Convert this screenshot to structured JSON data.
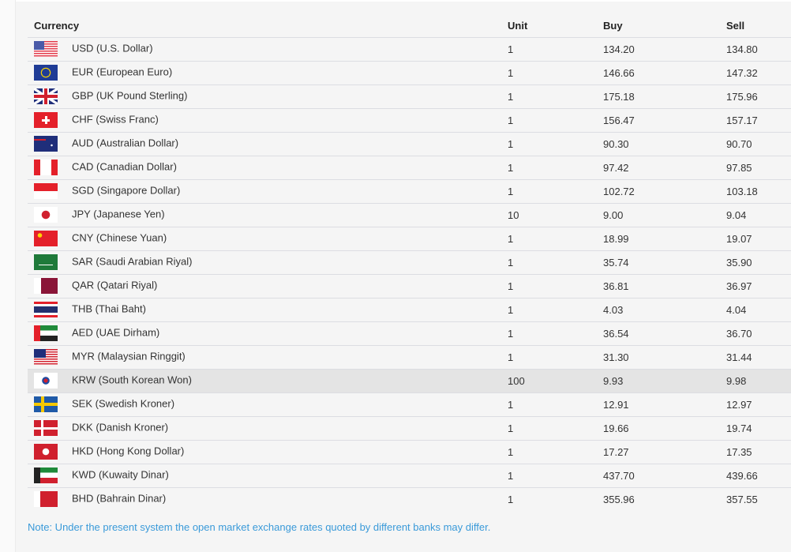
{
  "header": {
    "currency": "Currency",
    "unit": "Unit",
    "buy": "Buy",
    "sell": "Sell"
  },
  "rows": [
    {
      "flag": "us-flag-icon",
      "name": "USD (U.S. Dollar)",
      "unit": "1",
      "buy": "134.20",
      "sell": "134.80"
    },
    {
      "flag": "eu-flag-icon",
      "name": "EUR (European Euro)",
      "unit": "1",
      "buy": "146.66",
      "sell": "147.32"
    },
    {
      "flag": "uk-flag-icon",
      "name": "GBP (UK Pound Sterling)",
      "unit": "1",
      "buy": "175.18",
      "sell": "175.96"
    },
    {
      "flag": "ch-flag-icon",
      "name": "CHF (Swiss Franc)",
      "unit": "1",
      "buy": "156.47",
      "sell": "157.17"
    },
    {
      "flag": "au-flag-icon",
      "name": "AUD (Australian Dollar)",
      "unit": "1",
      "buy": "90.30",
      "sell": "90.70"
    },
    {
      "flag": "ca-flag-icon",
      "name": "CAD (Canadian Dollar)",
      "unit": "1",
      "buy": "97.42",
      "sell": "97.85"
    },
    {
      "flag": "sg-flag-icon",
      "name": "SGD (Singapore Dollar)",
      "unit": "1",
      "buy": "102.72",
      "sell": "103.18"
    },
    {
      "flag": "jp-flag-icon",
      "name": "JPY (Japanese Yen)",
      "unit": "10",
      "buy": "9.00",
      "sell": "9.04"
    },
    {
      "flag": "cn-flag-icon",
      "name": "CNY (Chinese Yuan)",
      "unit": "1",
      "buy": "18.99",
      "sell": "19.07"
    },
    {
      "flag": "sa-flag-icon",
      "name": "SAR (Saudi Arabian Riyal)",
      "unit": "1",
      "buy": "35.74",
      "sell": "35.90"
    },
    {
      "flag": "qa-flag-icon",
      "name": "QAR (Qatari Riyal)",
      "unit": "1",
      "buy": "36.81",
      "sell": "36.97"
    },
    {
      "flag": "th-flag-icon",
      "name": "THB (Thai Baht)",
      "unit": "1",
      "buy": "4.03",
      "sell": "4.04"
    },
    {
      "flag": "ae-flag-icon",
      "name": "AED (UAE Dirham)",
      "unit": "1",
      "buy": "36.54",
      "sell": "36.70"
    },
    {
      "flag": "my-flag-icon",
      "name": "MYR (Malaysian Ringgit)",
      "unit": "1",
      "buy": "31.30",
      "sell": "31.44"
    },
    {
      "flag": "kr-flag-icon",
      "name": "KRW (South Korean Won)",
      "unit": "100",
      "buy": "9.93",
      "sell": "9.98",
      "highlighted": true
    },
    {
      "flag": "se-flag-icon",
      "name": "SEK (Swedish Kroner)",
      "unit": "1",
      "buy": "12.91",
      "sell": "12.97"
    },
    {
      "flag": "dk-flag-icon",
      "name": "DKK (Danish Kroner)",
      "unit": "1",
      "buy": "19.66",
      "sell": "19.74"
    },
    {
      "flag": "hk-flag-icon",
      "name": "HKD (Hong Kong Dollar)",
      "unit": "1",
      "buy": "17.27",
      "sell": "17.35"
    },
    {
      "flag": "kw-flag-icon",
      "name": "KWD (Kuwaity Dinar)",
      "unit": "1",
      "buy": "437.70",
      "sell": "439.66"
    },
    {
      "flag": "bh-flag-icon",
      "name": "BHD (Bahrain Dinar)",
      "unit": "1",
      "buy": "355.96",
      "sell": "357.55"
    }
  ],
  "note": "Note: Under the present system the open market exchange rates quoted by different banks may differ.",
  "colors": {
    "note": "#3a9ad9",
    "highlight_row": "#e4e4e4",
    "panel": "#f5f5f5"
  }
}
